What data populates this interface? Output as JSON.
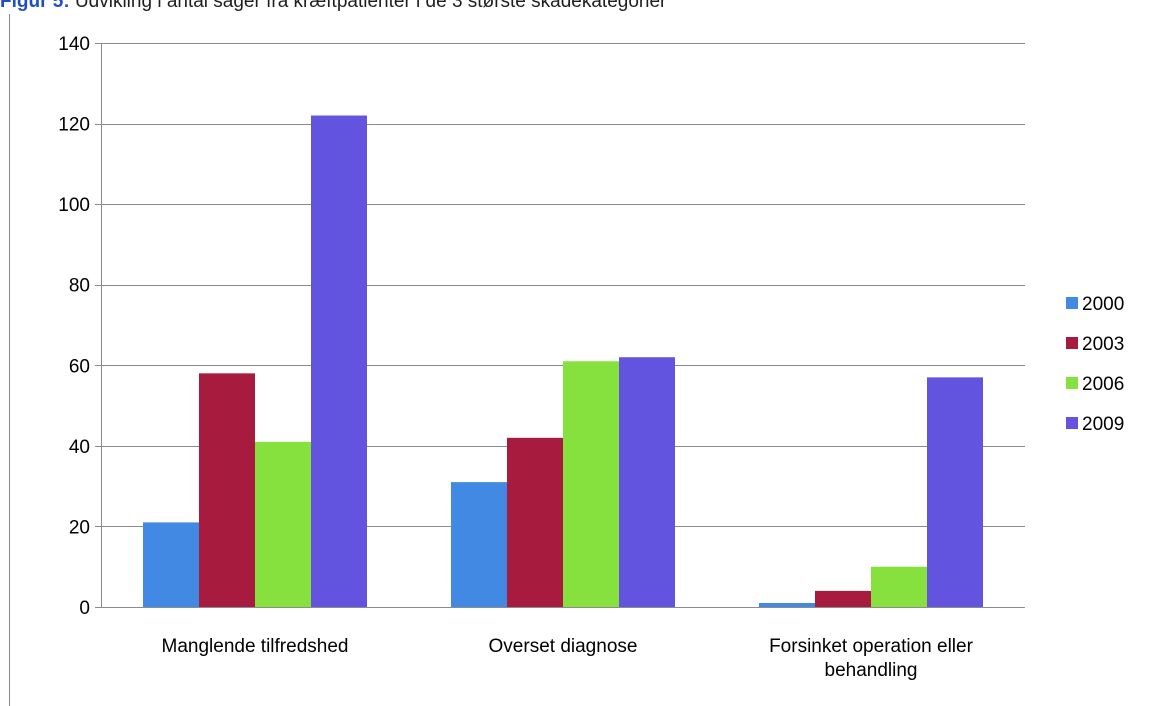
{
  "caption": {
    "label": "Figur 5:",
    "text": "Udvikling i antal sager fra kræftpatienter i de 3 største skadekategorier"
  },
  "chart_data": {
    "type": "bar",
    "categories": [
      [
        "Manglende tilfredshed"
      ],
      [
        "Overset diagnose"
      ],
      [
        "Forsinket operation eller",
        "behandling"
      ]
    ],
    "series": [
      {
        "name": "2000",
        "color": "#4189e3",
        "values": [
          21,
          31,
          1
        ]
      },
      {
        "name": "2003",
        "color": "#a71c3e",
        "values": [
          58,
          42,
          4
        ]
      },
      {
        "name": "2006",
        "color": "#86e03d",
        "values": [
          41,
          61,
          10
        ]
      },
      {
        "name": "2009",
        "color": "#6354e0",
        "values": [
          122,
          62,
          57
        ]
      }
    ],
    "yticks": [
      "0",
      "20",
      "40",
      "60",
      "80",
      "100",
      "120",
      "140"
    ],
    "ylim": [
      0,
      140
    ],
    "grid": true,
    "legend": "right"
  }
}
